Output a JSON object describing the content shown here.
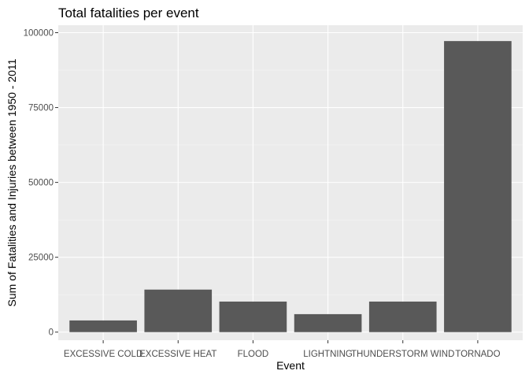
{
  "chart_data": {
    "type": "bar",
    "title": "Total fatalities per event",
    "xlabel": "Event",
    "ylabel": "Sum of Fatalities and Injuries between 1950 - 2011",
    "categories": [
      "EXCESSIVE COLD",
      "EXCESSIVE HEAT",
      "FLOOD",
      "LIGHTNING",
      "THUNDERSTORM WIND",
      "TORNADO"
    ],
    "values": [
      3900,
      14200,
      10200,
      6000,
      10200,
      97200
    ],
    "ylim": [
      -2700,
      102500
    ],
    "yticks": [
      0,
      25000,
      50000,
      75000,
      100000
    ],
    "ytick_labels": [
      "0",
      "25000",
      "50000",
      "75000",
      "100000"
    ],
    "grid": true,
    "colors": {
      "panel_background": "#ebebeb",
      "grid_major": "#ffffff",
      "grid_minor": "#f5f5f5",
      "bar_fill": "#595959",
      "tick_color": "#333333"
    }
  }
}
